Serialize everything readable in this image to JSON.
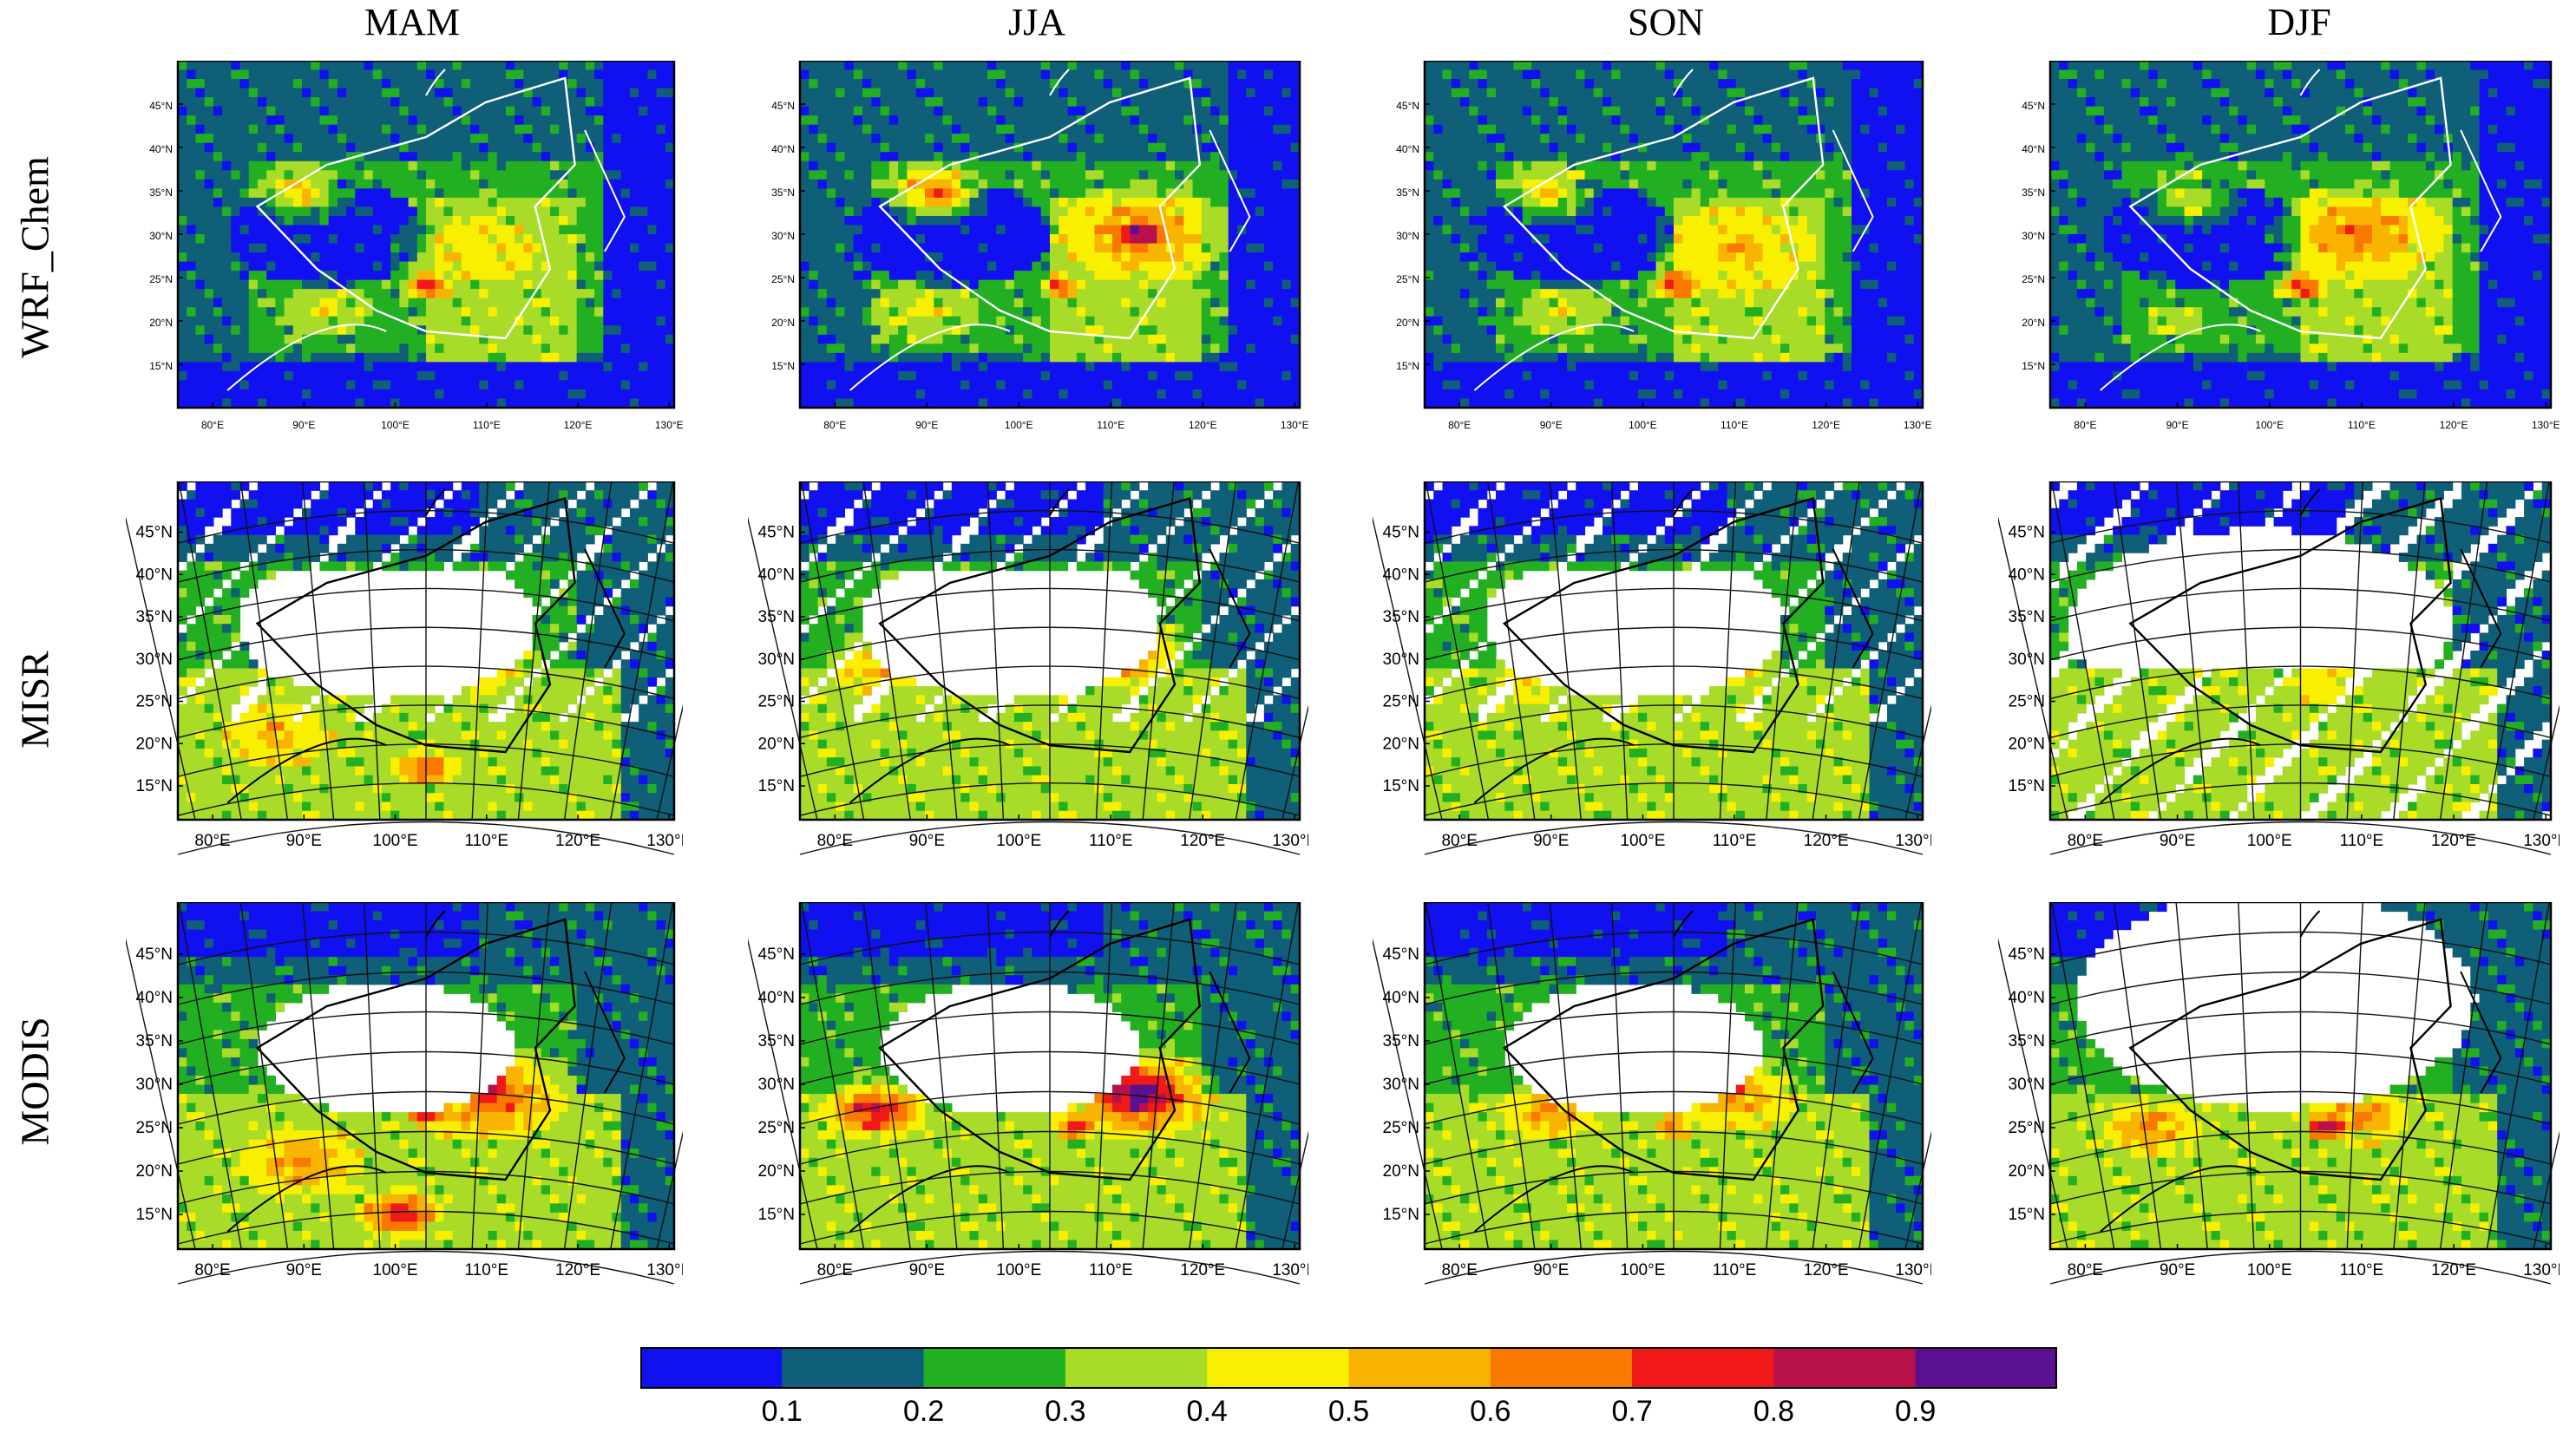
{
  "columns": [
    "MAM",
    "JJA",
    "SON",
    "DJF"
  ],
  "rows": [
    "WRF_Chem",
    "MISR",
    "MODIS"
  ],
  "axes": {
    "lon_ticks": [
      "80°E",
      "90°E",
      "100°E",
      "110°E",
      "120°E",
      "130°E"
    ],
    "lat_ticks": [
      "15°N",
      "20°N",
      "25°N",
      "30°N",
      "35°N",
      "40°N",
      "45°N"
    ]
  },
  "colorbar": {
    "labels": [
      "0.1",
      "0.2",
      "0.3",
      "0.4",
      "0.5",
      "0.6",
      "0.7",
      "0.8",
      "0.9"
    ],
    "colors": [
      "#1010f0",
      "#0f5f78",
      "#22b022",
      "#a8dc28",
      "#f8f000",
      "#f8b400",
      "#f87800",
      "#f01818",
      "#b8104a",
      "#5a1090"
    ]
  },
  "background_color": "#ffffff",
  "border_color_model": "#ffffff",
  "border_color_obs": "#000000"
}
